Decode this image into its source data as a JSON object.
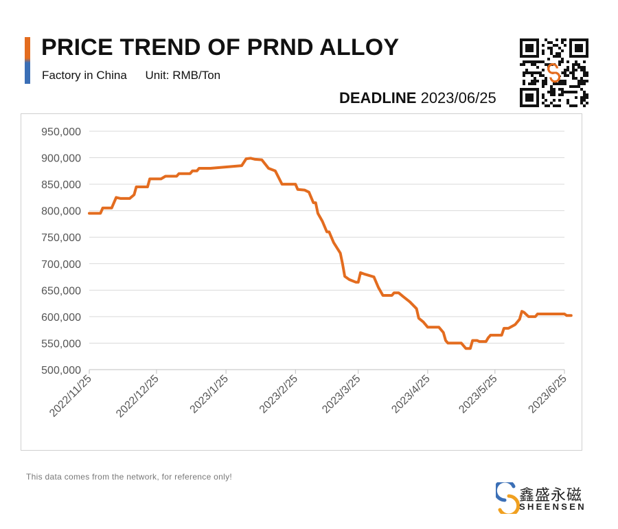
{
  "header": {
    "title": "PRICE TREND OF PRND ALLOY",
    "subtitle_location": "Factory in China",
    "subtitle_unit": "Unit: RMB/Ton",
    "deadline_label": "DEADLINE",
    "deadline_date": "2023/06/25",
    "accent_colors": [
      "#e36c1f",
      "#3b6fb6"
    ]
  },
  "chart_data": {
    "type": "line",
    "title": "PRICE TREND OF PRND ALLOY",
    "ylim": [
      500000,
      950000
    ],
    "y_ticks": [
      "500,000",
      "550,000",
      "600,000",
      "650,000",
      "700,000",
      "750,000",
      "800,000",
      "850,000",
      "900,000",
      "950,000"
    ],
    "x_ticks": [
      "2022/11/25",
      "2022/12/25",
      "2023/1/25",
      "2023/2/25",
      "2023/3/25",
      "2023/4/25",
      "2023/5/25",
      "2023/6/25"
    ],
    "grid": "horizontal",
    "line_color": "#e36c1f",
    "series": [
      {
        "points": [
          [
            "2022-11-25",
            795000
          ],
          [
            "2022-11-30",
            795000
          ],
          [
            "2022-12-01",
            805000
          ],
          [
            "2022-12-05",
            805000
          ],
          [
            "2022-12-07",
            825000
          ],
          [
            "2022-12-09",
            823000
          ],
          [
            "2022-12-13",
            823000
          ],
          [
            "2022-12-15",
            830000
          ],
          [
            "2022-12-16",
            845000
          ],
          [
            "2022-12-21",
            845000
          ],
          [
            "2022-12-22",
            860000
          ],
          [
            "2022-12-27",
            860000
          ],
          [
            "2022-12-29",
            865000
          ],
          [
            "2023-01-03",
            865000
          ],
          [
            "2023-01-04",
            870000
          ],
          [
            "2023-01-09",
            870000
          ],
          [
            "2023-01-10",
            875000
          ],
          [
            "2023-01-12",
            875000
          ],
          [
            "2023-01-13",
            880000
          ],
          [
            "2023-01-18",
            880000
          ],
          [
            "2023-02-01",
            885000
          ],
          [
            "2023-02-03",
            898000
          ],
          [
            "2023-02-05",
            899000
          ],
          [
            "2023-02-07",
            897000
          ],
          [
            "2023-02-10",
            896000
          ],
          [
            "2023-02-13",
            880000
          ],
          [
            "2023-02-16",
            875000
          ],
          [
            "2023-02-19",
            850000
          ],
          [
            "2023-02-22",
            850000
          ],
          [
            "2023-02-25",
            850000
          ],
          [
            "2023-02-26",
            840000
          ],
          [
            "2023-03-01",
            839000
          ],
          [
            "2023-03-03",
            835000
          ],
          [
            "2023-03-05",
            815000
          ],
          [
            "2023-03-06",
            815000
          ],
          [
            "2023-03-07",
            795000
          ],
          [
            "2023-03-09",
            780000
          ],
          [
            "2023-03-11",
            760000
          ],
          [
            "2023-03-12",
            760000
          ],
          [
            "2023-03-14",
            740000
          ],
          [
            "2023-03-17",
            720000
          ],
          [
            "2023-03-18",
            700000
          ],
          [
            "2023-03-19",
            676000
          ],
          [
            "2023-03-21",
            670000
          ],
          [
            "2023-03-24",
            665000
          ],
          [
            "2023-03-25",
            665000
          ],
          [
            "2023-03-26",
            683000
          ],
          [
            "2023-03-28",
            680000
          ],
          [
            "2023-04-01",
            675000
          ],
          [
            "2023-04-03",
            655000
          ],
          [
            "2023-04-05",
            640000
          ],
          [
            "2023-04-09",
            640000
          ],
          [
            "2023-04-10",
            645000
          ],
          [
            "2023-04-12",
            645000
          ],
          [
            "2023-04-14",
            638000
          ],
          [
            "2023-04-17",
            628000
          ],
          [
            "2023-04-20",
            615000
          ],
          [
            "2023-04-21",
            597000
          ],
          [
            "2023-04-23",
            590000
          ],
          [
            "2023-04-25",
            580000
          ],
          [
            "2023-04-30",
            580000
          ],
          [
            "2023-05-02",
            570000
          ],
          [
            "2023-05-03",
            555000
          ],
          [
            "2023-05-04",
            550000
          ],
          [
            "2023-05-10",
            550000
          ],
          [
            "2023-05-12",
            540000
          ],
          [
            "2023-05-14",
            540000
          ],
          [
            "2023-05-15",
            555000
          ],
          [
            "2023-05-17",
            555000
          ],
          [
            "2023-05-18",
            553000
          ],
          [
            "2023-05-21",
            553000
          ],
          [
            "2023-05-22",
            560000
          ],
          [
            "2023-05-23",
            565000
          ],
          [
            "2023-05-28",
            565000
          ],
          [
            "2023-05-29",
            578000
          ],
          [
            "2023-05-31",
            578000
          ],
          [
            "2023-06-03",
            585000
          ],
          [
            "2023-06-05",
            595000
          ],
          [
            "2023-06-06",
            610000
          ],
          [
            "2023-06-07",
            608000
          ],
          [
            "2023-06-09",
            600000
          ],
          [
            "2023-06-12",
            600000
          ],
          [
            "2023-06-13",
            605000
          ],
          [
            "2023-06-25",
            605000
          ],
          [
            "2023-06-26",
            602000
          ],
          [
            "2023-06-28",
            602000
          ]
        ]
      }
    ]
  },
  "footer": {
    "note": "This data comes from the network, for reference only!",
    "brand_cn": "鑫盛永磁",
    "brand_en": "SHEENSEN"
  }
}
